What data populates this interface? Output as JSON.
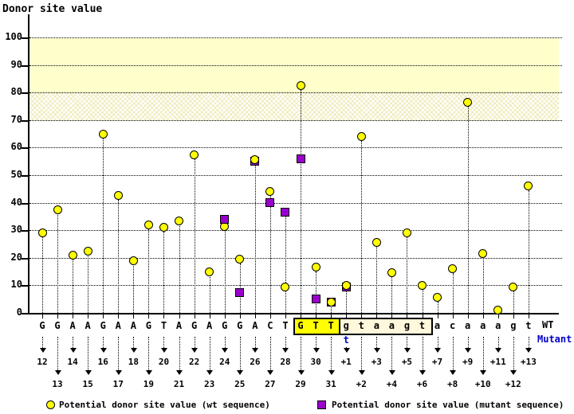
{
  "title": "Donor site value",
  "axis": {
    "y_ticks": [
      100,
      90,
      80,
      70,
      60,
      50,
      40,
      30,
      20,
      10,
      0
    ]
  },
  "right_labels": {
    "wt": "WT",
    "mutant": "Mutant"
  },
  "legend": {
    "wt": "Potential donor site value (wt sequence)",
    "mutant": "Potential donor site value (mutant sequence)"
  },
  "mutation": {
    "position_label": "+1",
    "wt_base": "g",
    "mutant_base": "t"
  },
  "colors": {
    "wt_marker": "#ffff00",
    "mutant_marker": "#9900cc",
    "threshold_band": "#ffffcc",
    "exon_highlight": "#ffff00",
    "intron_highlight": "#fff8dc",
    "mutant_text": "#0000cc"
  },
  "chart_data": {
    "type": "scatter",
    "title": "Donor site value",
    "ylabel": "Donor site value",
    "ylim": [
      0,
      110
    ],
    "grid": "horizontal-dotted",
    "legend_position": "bottom",
    "threshold_bands": [
      {
        "from": 80,
        "to": 100,
        "style": "solid"
      },
      {
        "from": 70,
        "to": 80,
        "style": "crosshatch"
      }
    ],
    "series_names": [
      "wt",
      "mutant"
    ],
    "points": [
      {
        "base": "G",
        "pos": "12",
        "row": 1,
        "wt": 29,
        "mut": null,
        "highlight": null
      },
      {
        "base": "G",
        "pos": "13",
        "row": 2,
        "wt": 37.5,
        "mut": null,
        "highlight": null
      },
      {
        "base": "A",
        "pos": "14",
        "row": 1,
        "wt": 21,
        "mut": null,
        "highlight": null
      },
      {
        "base": "A",
        "pos": "15",
        "row": 2,
        "wt": 22.5,
        "mut": null,
        "highlight": null
      },
      {
        "base": "G",
        "pos": "16",
        "row": 1,
        "wt": 65,
        "mut": null,
        "highlight": null
      },
      {
        "base": "A",
        "pos": "17",
        "row": 2,
        "wt": 42.5,
        "mut": null,
        "highlight": null
      },
      {
        "base": "A",
        "pos": "18",
        "row": 1,
        "wt": 19,
        "mut": null,
        "highlight": null
      },
      {
        "base": "G",
        "pos": "19",
        "row": 2,
        "wt": 32,
        "mut": null,
        "highlight": null
      },
      {
        "base": "T",
        "pos": "20",
        "row": 1,
        "wt": 31,
        "mut": null,
        "highlight": null
      },
      {
        "base": "A",
        "pos": "21",
        "row": 2,
        "wt": 33.5,
        "mut": null,
        "highlight": null
      },
      {
        "base": "G",
        "pos": "22",
        "row": 1,
        "wt": 57.5,
        "mut": null,
        "highlight": null
      },
      {
        "base": "A",
        "pos": "23",
        "row": 2,
        "wt": 15,
        "mut": null,
        "highlight": null
      },
      {
        "base": "G",
        "pos": "24",
        "row": 1,
        "wt": 31.5,
        "mut": 34,
        "highlight": null
      },
      {
        "base": "G",
        "pos": "25",
        "row": 2,
        "wt": 19.5,
        "mut": 7.5,
        "highlight": null
      },
      {
        "base": "A",
        "pos": "26",
        "row": 1,
        "wt": 55.5,
        "mut": 55,
        "highlight": null
      },
      {
        "base": "C",
        "pos": "27",
        "row": 2,
        "wt": 44,
        "mut": 40,
        "highlight": null
      },
      {
        "base": "T",
        "pos": "28",
        "row": 1,
        "wt": 9.5,
        "mut": 36.5,
        "highlight": null
      },
      {
        "base": "G",
        "pos": "29",
        "row": 2,
        "wt": 82.5,
        "mut": 56,
        "highlight": "exon"
      },
      {
        "base": "T",
        "pos": "30",
        "row": 1,
        "wt": 16.5,
        "mut": 5,
        "highlight": "exon"
      },
      {
        "base": "T",
        "pos": "31",
        "row": 2,
        "wt": 4,
        "mut": 4,
        "highlight": "exon"
      },
      {
        "base": "g",
        "pos": "+1",
        "row": 1,
        "wt": 10,
        "mut": 9.5,
        "highlight": "intron"
      },
      {
        "base": "t",
        "pos": "+2",
        "row": 2,
        "wt": 64,
        "mut": null,
        "highlight": "intron"
      },
      {
        "base": "a",
        "pos": "+3",
        "row": 1,
        "wt": 25.5,
        "mut": null,
        "highlight": "intron"
      },
      {
        "base": "a",
        "pos": "+4",
        "row": 2,
        "wt": 14.5,
        "mut": null,
        "highlight": "intron"
      },
      {
        "base": "g",
        "pos": "+5",
        "row": 1,
        "wt": 29,
        "mut": null,
        "highlight": "intron"
      },
      {
        "base": "t",
        "pos": "+6",
        "row": 2,
        "wt": 10,
        "mut": null,
        "highlight": "intron"
      },
      {
        "base": "a",
        "pos": "+7",
        "row": 1,
        "wt": 5.5,
        "mut": null,
        "highlight": null
      },
      {
        "base": "c",
        "pos": "+8",
        "row": 2,
        "wt": 16,
        "mut": null,
        "highlight": null
      },
      {
        "base": "a",
        "pos": "+9",
        "row": 1,
        "wt": 76.5,
        "mut": null,
        "highlight": null
      },
      {
        "base": "a",
        "pos": "+10",
        "row": 2,
        "wt": 21.5,
        "mut": null,
        "highlight": null
      },
      {
        "base": "a",
        "pos": "+11",
        "row": 1,
        "wt": 1,
        "mut": null,
        "highlight": null
      },
      {
        "base": "g",
        "pos": "+12",
        "row": 2,
        "wt": 9.5,
        "mut": null,
        "highlight": null
      },
      {
        "base": "t",
        "pos": "+13",
        "row": 1,
        "wt": 46,
        "mut": null,
        "highlight": null
      }
    ]
  }
}
